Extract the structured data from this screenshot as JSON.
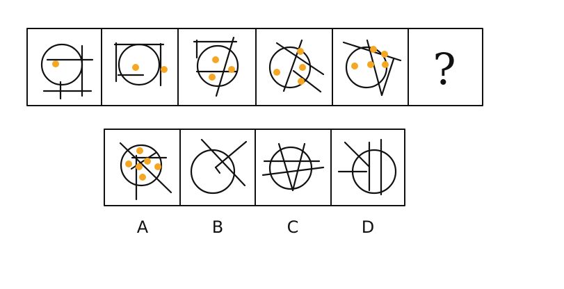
{
  "question_mark": "?",
  "options": [
    {
      "label": "A"
    },
    {
      "label": "B"
    },
    {
      "label": "C"
    },
    {
      "label": "D"
    }
  ],
  "dot_color": "#F5A623",
  "line_color": "#111111",
  "sequence_dot_counts": [
    1,
    2,
    3,
    4,
    5
  ],
  "option_dot_counts": [
    6,
    0,
    0,
    0
  ]
}
